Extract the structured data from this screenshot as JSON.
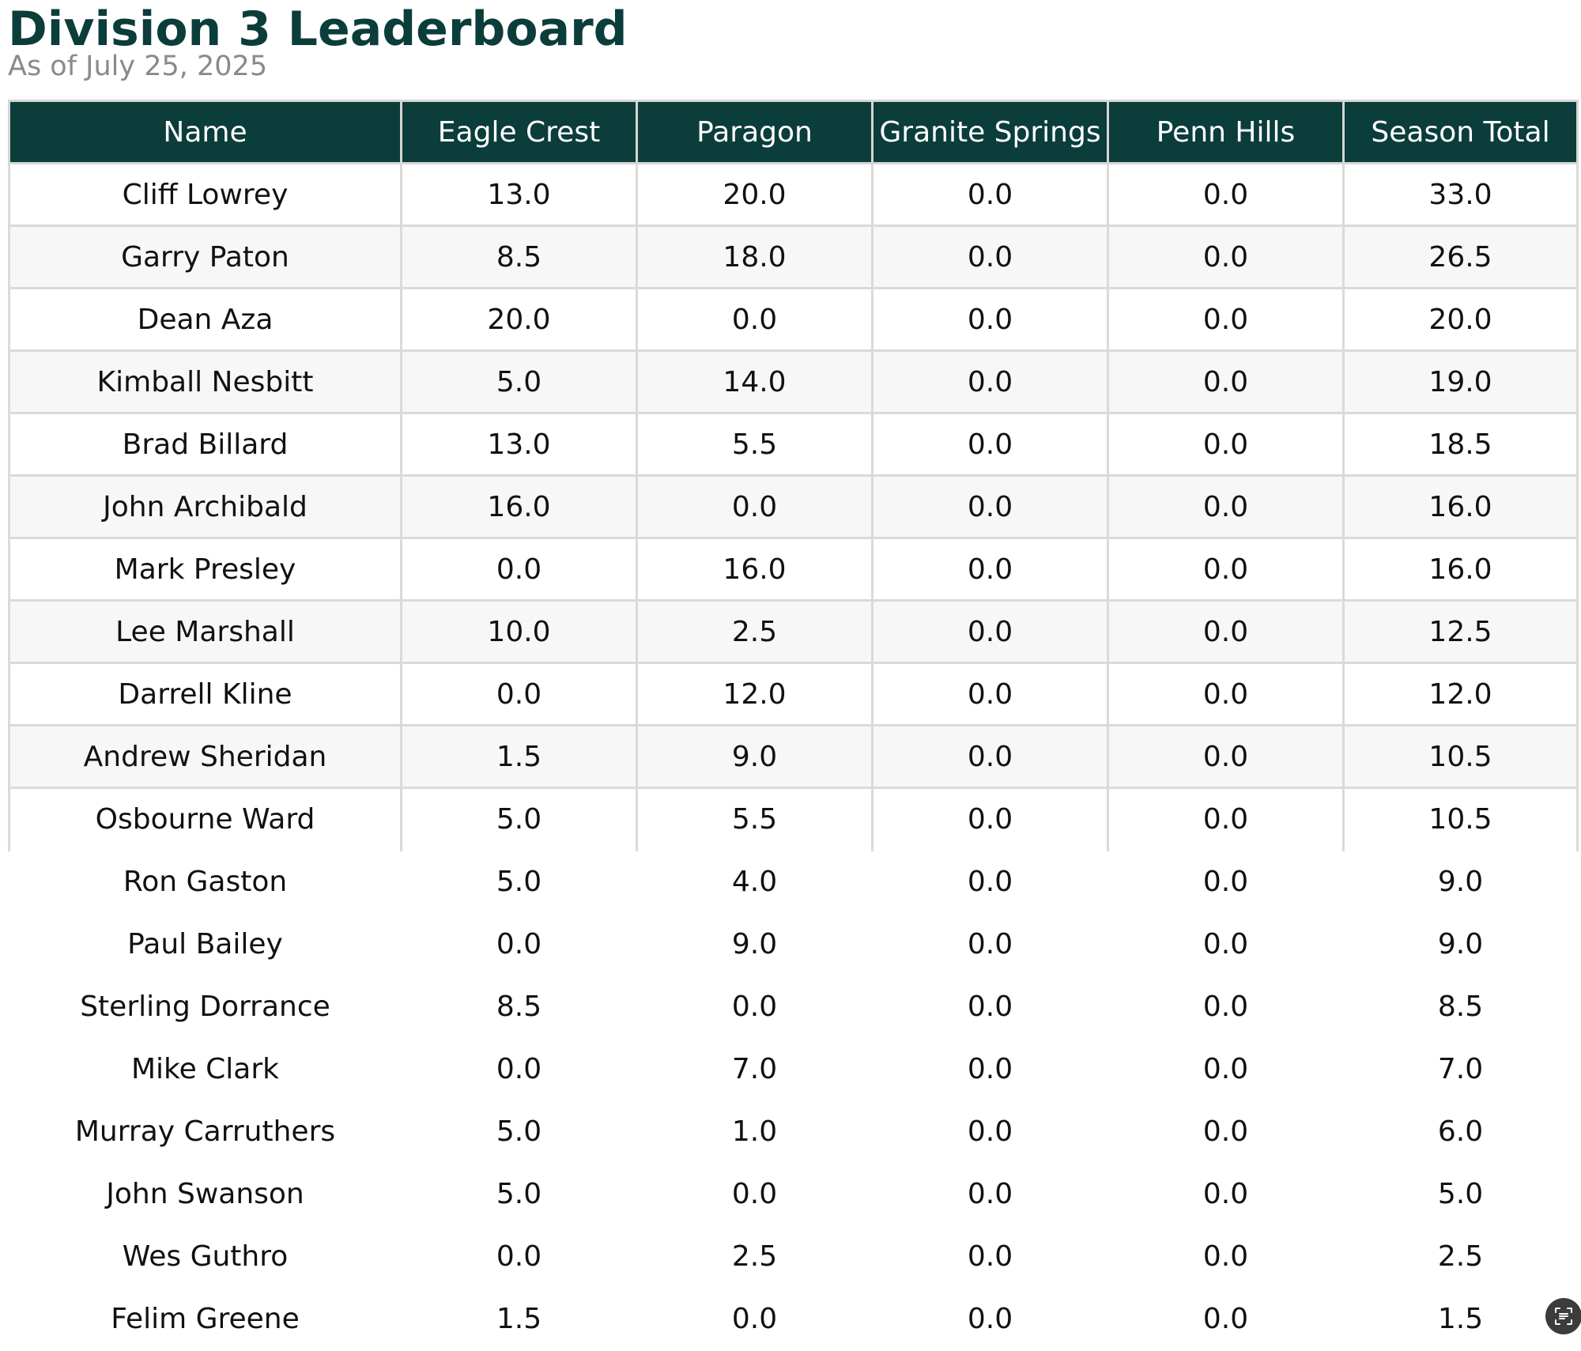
{
  "title": "Division 3 Leaderboard",
  "subtitle": "As of July 25, 2025",
  "colors": {
    "header_bg": "#0b3d3a",
    "title": "#0b3d3a",
    "subtitle": "#8a8a8a",
    "grid": "#dadada",
    "alt_row": "#f7f7f7"
  },
  "table": {
    "columns": [
      "Name",
      "Eagle Crest",
      "Paragon",
      "Granite Springs",
      "Penn Hills",
      "Season Total"
    ],
    "rows": [
      [
        "Cliff Lowrey",
        "13.0",
        "20.0",
        "0.0",
        "0.0",
        "33.0"
      ],
      [
        "Garry Paton",
        "8.5",
        "18.0",
        "0.0",
        "0.0",
        "26.5"
      ],
      [
        "Dean Aza",
        "20.0",
        "0.0",
        "0.0",
        "0.0",
        "20.0"
      ],
      [
        "Kimball Nesbitt",
        "5.0",
        "14.0",
        "0.0",
        "0.0",
        "19.0"
      ],
      [
        "Brad Billard",
        "13.0",
        "5.5",
        "0.0",
        "0.0",
        "18.5"
      ],
      [
        "John Archibald",
        "16.0",
        "0.0",
        "0.0",
        "0.0",
        "16.0"
      ],
      [
        "Mark Presley",
        "0.0",
        "16.0",
        "0.0",
        "0.0",
        "16.0"
      ],
      [
        "Lee Marshall",
        "10.0",
        "2.5",
        "0.0",
        "0.0",
        "12.5"
      ],
      [
        "Darrell Kline",
        "0.0",
        "12.0",
        "0.0",
        "0.0",
        "12.0"
      ],
      [
        "Andrew Sheridan",
        "1.5",
        "9.0",
        "0.0",
        "0.0",
        "10.5"
      ],
      [
        "Osbourne Ward",
        "5.0",
        "5.5",
        "0.0",
        "0.0",
        "10.5"
      ],
      [
        "Ron Gaston",
        "5.0",
        "4.0",
        "0.0",
        "0.0",
        "9.0"
      ],
      [
        "Paul Bailey",
        "0.0",
        "9.0",
        "0.0",
        "0.0",
        "9.0"
      ],
      [
        "Sterling Dorrance",
        "8.5",
        "0.0",
        "0.0",
        "0.0",
        "8.5"
      ],
      [
        "Mike Clark",
        "0.0",
        "7.0",
        "0.0",
        "0.0",
        "7.0"
      ],
      [
        "Murray Carruthers",
        "5.0",
        "1.0",
        "0.0",
        "0.0",
        "6.0"
      ],
      [
        "John Swanson",
        "5.0",
        "0.0",
        "0.0",
        "0.0",
        "5.0"
      ],
      [
        "Wes Guthro",
        "0.0",
        "2.5",
        "0.0",
        "0.0",
        "2.5"
      ],
      [
        "Felim Greene",
        "1.5",
        "0.0",
        "0.0",
        "0.0",
        "1.5"
      ]
    ]
  },
  "fab": {
    "icon": "scan-text-icon"
  }
}
